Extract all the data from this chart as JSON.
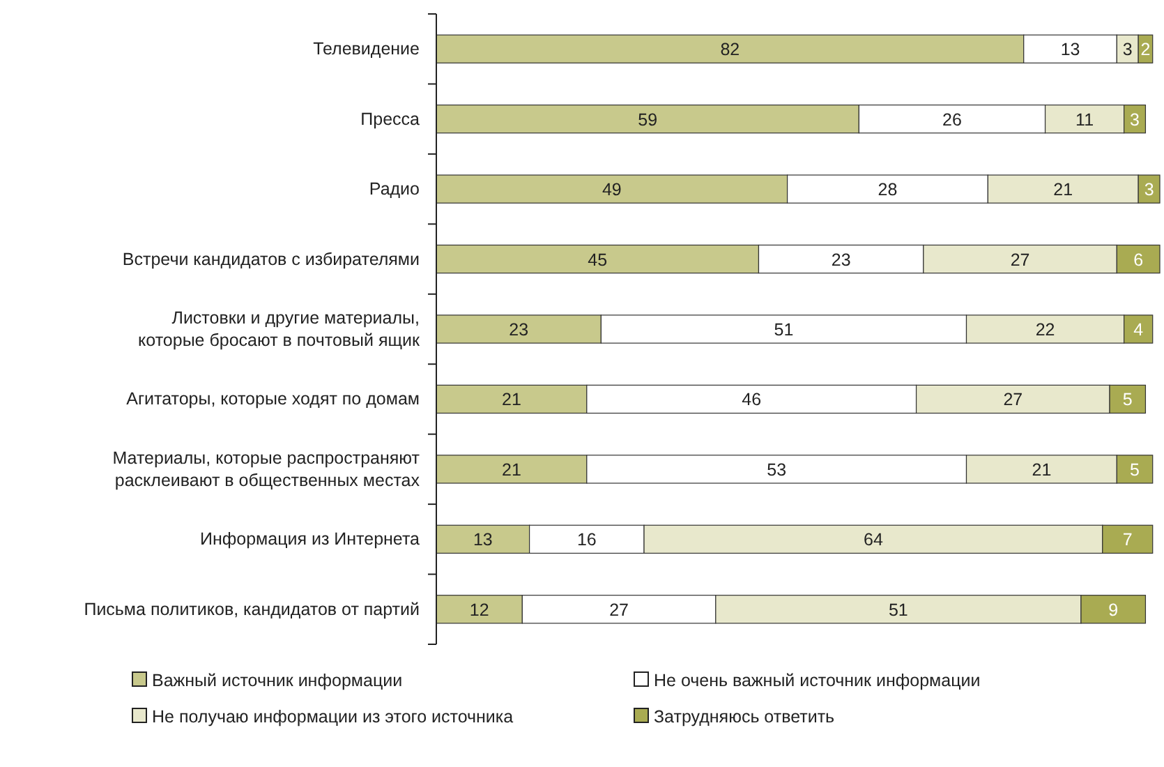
{
  "chart_data": {
    "type": "bar",
    "orientation": "horizontal",
    "stacked": true,
    "data_labels": true,
    "legend": "bottom",
    "categories": [
      "Телевидение",
      "Пресса",
      "Радио",
      "Встречи кандидатов с избирателями",
      "Листовки и другие материалы,\nкоторые бросают в почтовый ящик",
      "Агитаторы, которые ходят по домам",
      "Материалы, которые распространяют\nрасклеивают в общественных местах",
      "Информация из Интернета",
      "Письма политиков, кандидатов от партий"
    ],
    "series": [
      {
        "name": "Важный источник информации",
        "color": "#c8c98c",
        "values": [
          82,
          59,
          49,
          45,
          23,
          21,
          21,
          13,
          12
        ]
      },
      {
        "name": "Не очень важный источник информации",
        "color": "#ffffff",
        "values": [
          13,
          26,
          28,
          23,
          51,
          46,
          53,
          16,
          27
        ]
      },
      {
        "name": "Не получаю информации из этого источника",
        "color": "#e8e8cc",
        "values": [
          3,
          11,
          21,
          27,
          22,
          27,
          21,
          64,
          51
        ]
      },
      {
        "name": "Затрудняюсь ответить",
        "color": "#a9ab52",
        "values": [
          2,
          3,
          3,
          6,
          4,
          5,
          5,
          7,
          9
        ]
      }
    ]
  }
}
